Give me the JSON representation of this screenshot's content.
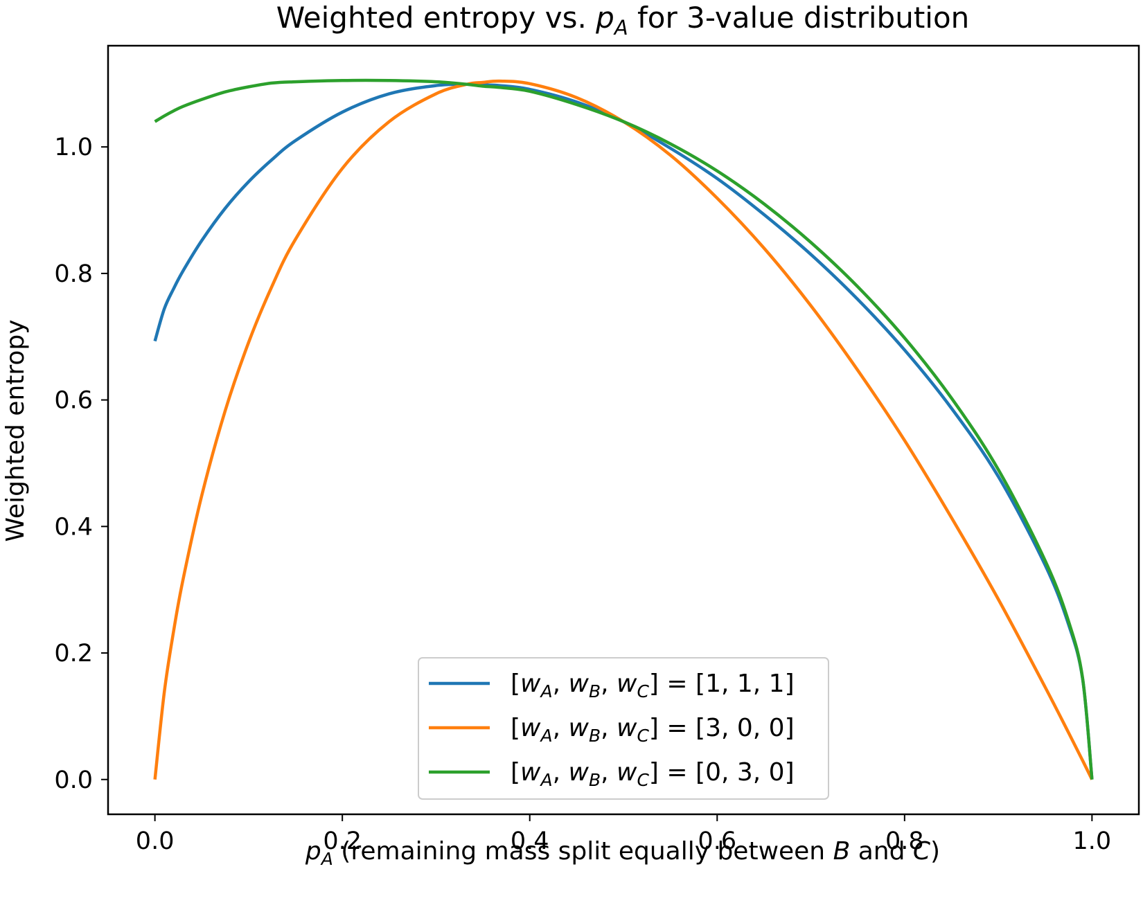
{
  "chart_data": {
    "type": "line",
    "title": {
      "prefix": "Weighted entropy vs. ",
      "var": "p",
      "var_sub": "A",
      "suffix": " for 3-value distribution"
    },
    "xlabel": {
      "var": "p",
      "var_sub": "A",
      "part1": " (remaining mass split equally between ",
      "b": "B",
      "part2": " and ",
      "c": "C",
      "part3": ")"
    },
    "ylabel": "Weighted entropy",
    "xlim": [
      -0.05,
      1.05
    ],
    "ylim": [
      -0.055,
      1.16
    ],
    "xticks": [
      0.0,
      0.2,
      0.4,
      0.6,
      0.8,
      1.0
    ],
    "xtick_labels": [
      "0.0",
      "0.2",
      "0.4",
      "0.6",
      "0.8",
      "1.0"
    ],
    "yticks": [
      0.0,
      0.2,
      0.4,
      0.6,
      0.8,
      1.0
    ],
    "ytick_labels": [
      "0.0",
      "0.2",
      "0.4",
      "0.6",
      "0.8",
      "1.0"
    ],
    "grid": false,
    "legend_position": "lower-center",
    "x": [
      0.0,
      0.01,
      0.02,
      0.03,
      0.05,
      0.075,
      0.1,
      0.125,
      0.15,
      0.2,
      0.25,
      0.3,
      0.333,
      0.35,
      0.368,
      0.4,
      0.45,
      0.5,
      0.55,
      0.6,
      0.65,
      0.7,
      0.75,
      0.8,
      0.85,
      0.9,
      0.95,
      0.975,
      0.99,
      1.0
    ],
    "series": [
      {
        "name": "[w_A, w_B, w_C] = [1, 1, 1]",
        "color": "#1f77b4",
        "values": [
          0.693,
          0.744,
          0.776,
          0.804,
          0.852,
          0.903,
          0.945,
          0.98,
          1.01,
          1.055,
          1.084,
          1.097,
          1.099,
          1.098,
          1.097,
          1.091,
          1.071,
          1.04,
          0.998,
          0.95,
          0.893,
          0.83,
          0.759,
          0.679,
          0.587,
          0.479,
          0.339,
          0.245,
          0.159,
          0.0
        ]
      },
      {
        "name": "[w_A, w_B, w_C] = [3, 0, 0]",
        "color": "#ff7f0e",
        "values": [
          0.0,
          0.138,
          0.235,
          0.316,
          0.449,
          0.583,
          0.691,
          0.78,
          0.854,
          0.966,
          1.04,
          1.084,
          1.099,
          1.102,
          1.104,
          1.1,
          1.078,
          1.04,
          0.987,
          0.919,
          0.84,
          0.749,
          0.647,
          0.536,
          0.414,
          0.285,
          0.146,
          0.074,
          0.03,
          0.0
        ]
      },
      {
        "name": "[w_A, w_B, w_C] = [0, 3, 0]",
        "color": "#2ca02c",
        "values": [
          1.04,
          1.049,
          1.057,
          1.064,
          1.075,
          1.087,
          1.095,
          1.101,
          1.103,
          1.105,
          1.105,
          1.103,
          1.099,
          1.096,
          1.094,
          1.088,
          1.067,
          1.04,
          1.005,
          0.962,
          0.91,
          0.849,
          0.779,
          0.698,
          0.603,
          0.49,
          0.346,
          0.25,
          0.16,
          0.0
        ]
      }
    ],
    "legend": [
      {
        "w": "w",
        "a": "A",
        "b": "B",
        "c": "C",
        "rhs": "[1, 1, 1]"
      },
      {
        "w": "w",
        "a": "A",
        "b": "B",
        "c": "C",
        "rhs": "[3, 0, 0]"
      },
      {
        "w": "w",
        "a": "A",
        "b": "B",
        "c": "C",
        "rhs": "[0, 3, 0]"
      }
    ]
  }
}
